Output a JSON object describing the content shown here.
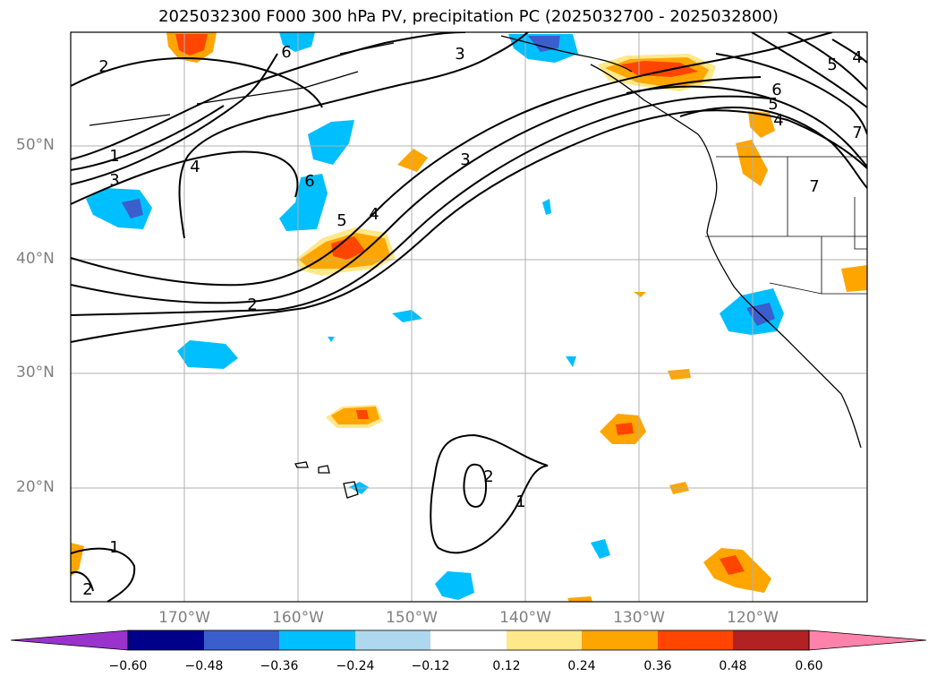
{
  "title": "2025032300 F000 300 hPa PV, precipitation PC (2025032700 - 2025032800)",
  "lat_labels": [
    "50°N",
    "40°N",
    "30°N",
    "20°N"
  ],
  "lon_labels": [
    "170°W",
    "160°W",
    "150°W",
    "140°W",
    "130°W",
    "120°W"
  ],
  "colorbar": {
    "ticks": [
      "−0.60",
      "−0.48",
      "−0.36",
      "−0.24",
      "−0.12",
      "0.12",
      "0.24",
      "0.36",
      "0.48",
      "0.60"
    ],
    "colors": [
      "#9933cc",
      "#00008b",
      "#3a5fcd",
      "#00bfff",
      "#add8f0",
      "#ffffff",
      "#ffe88a",
      "#ffa500",
      "#ff4500",
      "#b22222",
      "#ff82ab"
    ]
  },
  "contour_labels": [
    "2",
    "1",
    "3",
    "4",
    "6",
    "3",
    "5",
    "4",
    "3",
    "2",
    "2",
    "1",
    "1",
    "2",
    "6",
    "5",
    "4",
    "6",
    "5",
    "4",
    "7",
    "7"
  ],
  "map": {
    "extent": {
      "lon_min": -180,
      "lon_max": -110,
      "lat_min": 10,
      "lat_max": 60
    },
    "gridlines": true
  }
}
